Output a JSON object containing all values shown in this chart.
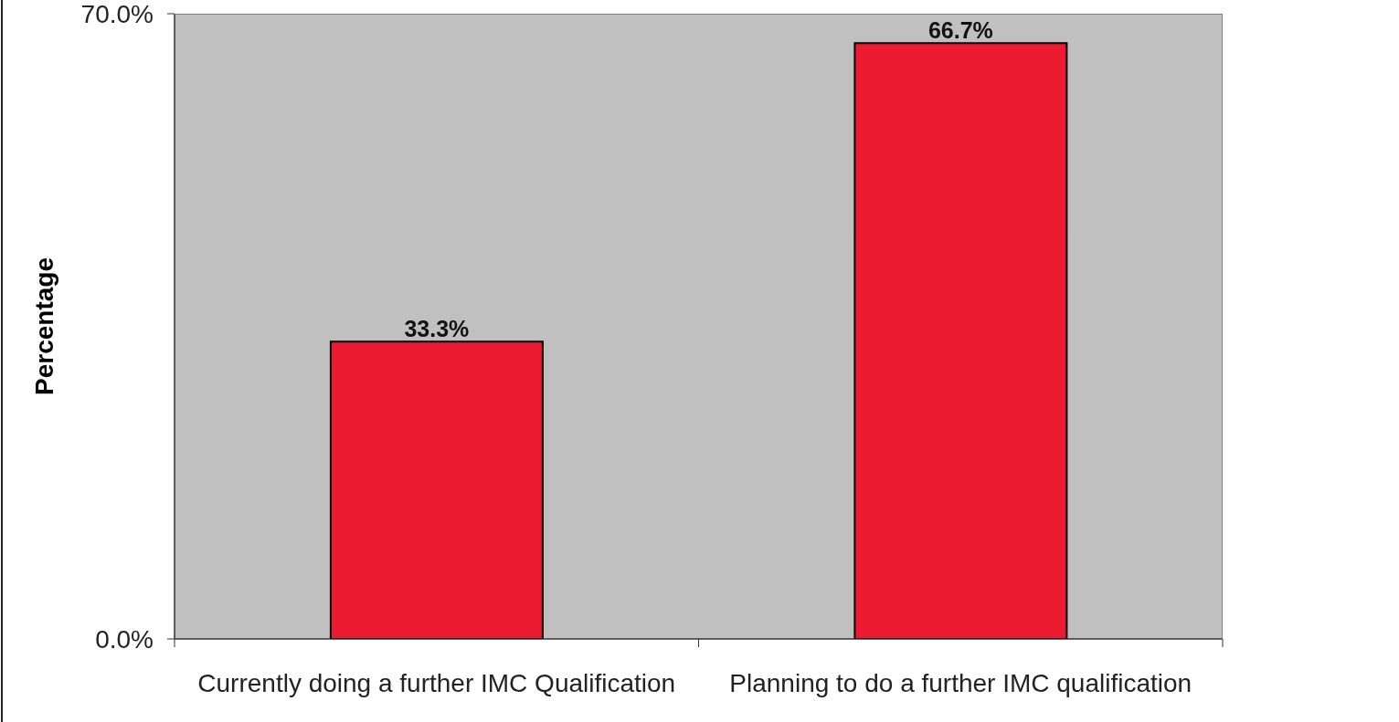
{
  "chart_data": {
    "type": "bar",
    "ylabel": "Percentage",
    "categories": [
      "Currently doing a further IMC Qualification",
      "Planning to do a further IMC qualification"
    ],
    "values": [
      33.3,
      66.7
    ],
    "value_labels": [
      "33.3%",
      "66.7%"
    ],
    "color": "#ed1b32",
    "ylim": [
      0,
      70
    ],
    "yticks": [
      {
        "value": 0,
        "label": "0.0%"
      },
      {
        "value": 70,
        "label": "70.0%"
      }
    ]
  }
}
